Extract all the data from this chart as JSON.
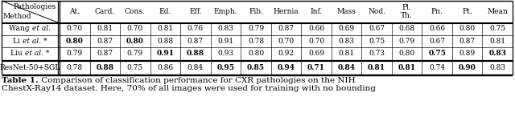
{
  "headers": [
    "At.",
    "Card.",
    "Cons.",
    "Ed.",
    "Eff.",
    "Emph.",
    "Fib.",
    "Hernia",
    "Inf.",
    "Mass",
    "Nod.",
    "Pl.\nTh.",
    "Pn.",
    "Pt.",
    "Mean"
  ],
  "methods": [
    [
      [
        "Wang ",
        false,
        false
      ],
      [
        "et al.",
        false,
        true
      ],
      [
        "",
        false,
        false
      ]
    ],
    [
      [
        "Li ",
        false,
        false
      ],
      [
        "et al.",
        false,
        true
      ],
      [
        " *",
        false,
        false
      ]
    ],
    [
      [
        "Liu ",
        false,
        false
      ],
      [
        "et al.",
        false,
        true
      ],
      [
        " *",
        false,
        false
      ]
    ],
    [
      [
        "ResNet-50+SGL",
        false,
        false
      ]
    ]
  ],
  "values": [
    [
      0.7,
      0.81,
      0.7,
      0.81,
      0.76,
      0.83,
      0.79,
      0.87,
      0.66,
      0.69,
      0.67,
      0.68,
      0.66,
      0.8,
      0.75
    ],
    [
      0.8,
      0.87,
      0.8,
      0.88,
      0.87,
      0.91,
      0.78,
      0.7,
      0.7,
      0.83,
      0.75,
      0.79,
      0.67,
      0.87,
      0.81
    ],
    [
      0.79,
      0.87,
      0.79,
      0.91,
      0.88,
      0.93,
      0.8,
      0.92,
      0.69,
      0.81,
      0.73,
      0.8,
      0.75,
      0.89,
      0.83
    ],
    [
      0.78,
      0.88,
      0.75,
      0.86,
      0.84,
      0.95,
      0.85,
      0.94,
      0.71,
      0.84,
      0.81,
      0.81,
      0.74,
      0.9,
      0.83
    ]
  ],
  "bold": [
    [
      false,
      false,
      false,
      false,
      false,
      false,
      false,
      false,
      false,
      false,
      false,
      false,
      false,
      false,
      false
    ],
    [
      true,
      false,
      true,
      false,
      false,
      false,
      false,
      false,
      false,
      false,
      false,
      false,
      false,
      false,
      false
    ],
    [
      false,
      false,
      false,
      true,
      true,
      false,
      false,
      false,
      false,
      false,
      false,
      false,
      true,
      false,
      true
    ],
    [
      false,
      true,
      false,
      false,
      false,
      true,
      true,
      true,
      true,
      true,
      true,
      true,
      false,
      true,
      false
    ]
  ],
  "caption_bold": "Table 1.",
  "caption_rest": " Comparison of classification performance for CXR pathologies on the NIH",
  "caption_line2": "ChestX-Ray14 dataset. Here, 70% of all images were used for training with no bounding",
  "figsize": [
    6.4,
    1.41
  ],
  "dpi": 100,
  "fs": 6.5,
  "fs_cap": 7.5
}
